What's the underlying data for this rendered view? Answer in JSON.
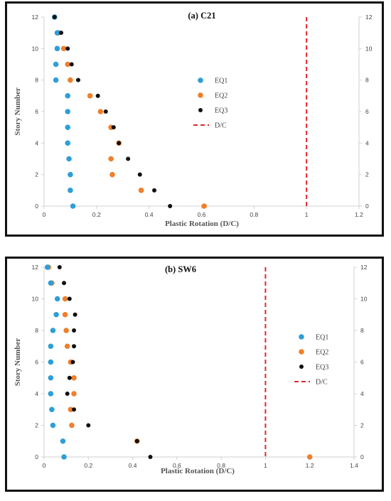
{
  "colors": {
    "EQ1": "#2e9fd6",
    "EQ2": "#f07f2a",
    "EQ3": "#111111",
    "DC": "#e3262a",
    "axis": "#d0d0d0"
  },
  "chart_data": [
    {
      "type": "scatter",
      "title": "(a) C21",
      "xlabel": "Plastic Rotation (D/C)",
      "ylabel": "Story Number",
      "xlim": [
        0,
        1.2
      ],
      "ylim": [
        0,
        12
      ],
      "xticks": [
        "0",
        "0.2",
        "0.4",
        "0.6",
        "0.8",
        "1",
        "1.2"
      ],
      "yticks": [
        "0",
        "2",
        "4",
        "6",
        "8",
        "10",
        "12"
      ],
      "y2ticks": [
        "0",
        "2",
        "4",
        "6",
        "8",
        "10",
        "12"
      ],
      "legend_position": "right-center",
      "legend": [
        "EQ1",
        "EQ2",
        "EQ3",
        "D/C"
      ],
      "dc_line_x": 1.0,
      "series": [
        {
          "name": "EQ1",
          "points": [
            [
              0.11,
              0
            ],
            [
              0.1,
              1
            ],
            [
              0.1,
              2
            ],
            [
              0.095,
              3
            ],
            [
              0.09,
              4
            ],
            [
              0.09,
              5
            ],
            [
              0.09,
              6
            ],
            [
              0.09,
              7
            ],
            [
              0.045,
              8
            ],
            [
              0.045,
              9
            ],
            [
              0.05,
              10
            ],
            [
              0.05,
              11
            ],
            [
              0.04,
              12
            ]
          ]
        },
        {
          "name": "EQ2",
          "points": [
            [
              0.61,
              0
            ],
            [
              0.37,
              1
            ],
            [
              0.26,
              2
            ],
            [
              0.255,
              3
            ],
            [
              0.285,
              4
            ],
            [
              0.255,
              5
            ],
            [
              0.215,
              6
            ],
            [
              0.175,
              7
            ],
            [
              0.1,
              8
            ],
            [
              0.09,
              9
            ],
            [
              0.075,
              10
            ],
            [
              0.055,
              11
            ],
            [
              0.04,
              12
            ]
          ]
        },
        {
          "name": "EQ3",
          "points": [
            [
              0.48,
              0
            ],
            [
              0.42,
              1
            ],
            [
              0.365,
              2
            ],
            [
              0.32,
              3
            ],
            [
              0.285,
              4
            ],
            [
              0.265,
              5
            ],
            [
              0.235,
              6
            ],
            [
              0.205,
              7
            ],
            [
              0.13,
              8
            ],
            [
              0.105,
              9
            ],
            [
              0.09,
              10
            ],
            [
              0.065,
              11
            ],
            [
              0.04,
              12
            ]
          ]
        }
      ]
    },
    {
      "type": "scatter",
      "title": "(b) SW6",
      "xlabel": "Plastic Rotation (D/C)",
      "ylabel": "Story Number",
      "xlim": [
        0,
        1.4
      ],
      "ylim": [
        0,
        12
      ],
      "xticks": [
        "0",
        "0.2",
        "0.4",
        "0.6",
        "0.8",
        "1",
        "1.2",
        "1.4"
      ],
      "yticks": [
        "0",
        "2",
        "4",
        "6",
        "8",
        "10",
        "12"
      ],
      "y2ticks": [
        "0",
        "2",
        "4",
        "6",
        "8",
        "10",
        "12"
      ],
      "legend_position": "right-center",
      "legend": [
        "EQ1",
        "EQ2",
        "EQ3",
        "D/C"
      ],
      "dc_line_x": 1.0,
      "series": [
        {
          "name": "EQ1",
          "points": [
            [
              0.09,
              0
            ],
            [
              0.085,
              1
            ],
            [
              0.04,
              2
            ],
            [
              0.035,
              3
            ],
            [
              0.03,
              4
            ],
            [
              0.03,
              5
            ],
            [
              0.03,
              6
            ],
            [
              0.03,
              7
            ],
            [
              0.04,
              8
            ],
            [
              0.055,
              9
            ],
            [
              0.06,
              10
            ],
            [
              0.03,
              11
            ],
            [
              0.015,
              12
            ]
          ]
        },
        {
          "name": "EQ2",
          "points": [
            [
              1.2,
              0
            ],
            [
              0.42,
              1
            ],
            [
              0.125,
              2
            ],
            [
              0.12,
              3
            ],
            [
              0.135,
              4
            ],
            [
              0.135,
              5
            ],
            [
              0.12,
              6
            ],
            [
              0.105,
              7
            ],
            [
              0.1,
              8
            ],
            [
              0.095,
              9
            ],
            [
              0.095,
              10
            ],
            [
              0.035,
              11
            ],
            [
              0.02,
              12
            ]
          ]
        },
        {
          "name": "EQ3",
          "points": [
            [
              0.48,
              0
            ],
            [
              0.42,
              1
            ],
            [
              0.2,
              2
            ],
            [
              0.135,
              3
            ],
            [
              0.105,
              4
            ],
            [
              0.115,
              5
            ],
            [
              0.13,
              6
            ],
            [
              0.135,
              7
            ],
            [
              0.135,
              8
            ],
            [
              0.14,
              9
            ],
            [
              0.115,
              10
            ],
            [
              0.09,
              11
            ],
            [
              0.07,
              12
            ]
          ]
        }
      ]
    }
  ]
}
